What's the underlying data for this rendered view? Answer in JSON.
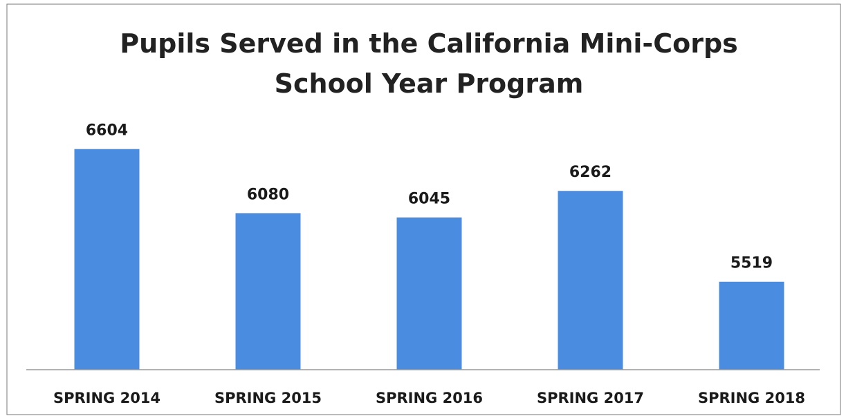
{
  "chart_data": {
    "type": "bar",
    "title": "Pupils Served in the California Mini-Corps School Year Program",
    "categories": [
      "SPRING 2014",
      "SPRING 2015",
      "SPRING 2016",
      "SPRING 2017",
      "SPRING 2018"
    ],
    "values": [
      6604,
      6080,
      6045,
      6262,
      5519
    ],
    "color": "#4a8de0",
    "ylim": [
      4800,
      6800
    ]
  }
}
